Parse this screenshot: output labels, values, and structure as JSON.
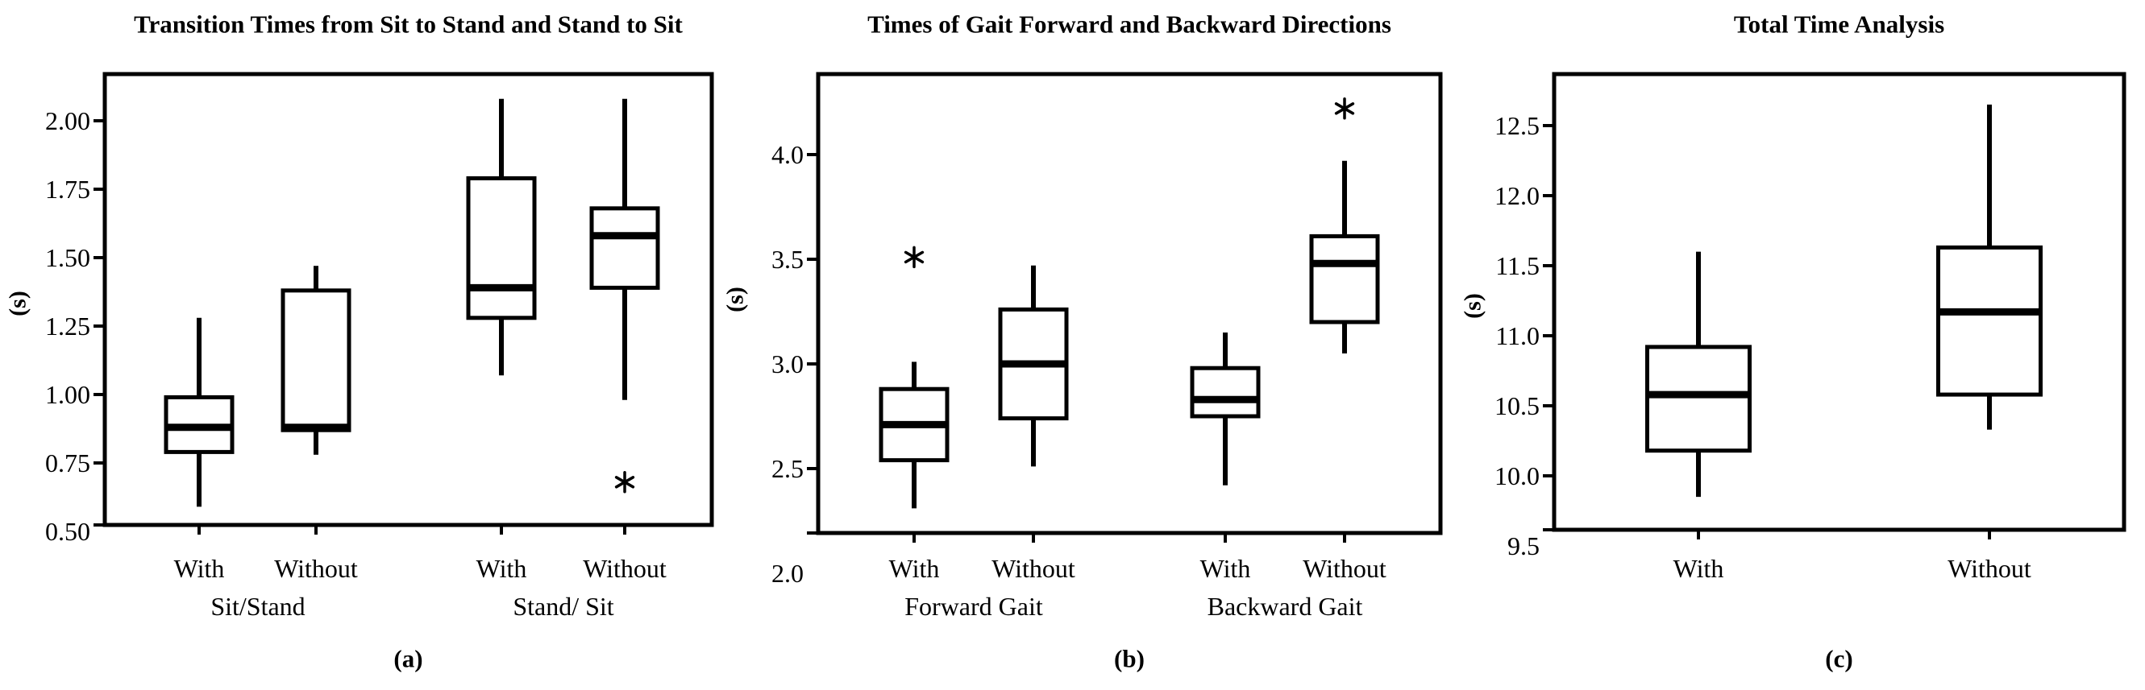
{
  "figure": {
    "type": "three-panel-boxplot-figure",
    "background": "#ffffff",
    "ink": "#000000"
  },
  "chart_data": [
    {
      "type": "box",
      "panel": "a",
      "title": "Transition Times from Sit to Stand and Stand to Sit",
      "ylabel": "(s)",
      "caption": "(a)",
      "ytick_labels": [
        "2.00",
        "1.75",
        "1.50",
        "1.25",
        "1.00",
        "0.75",
        "0.50"
      ],
      "ytick_values": [
        2.0,
        1.75,
        1.5,
        1.25,
        1.0,
        0.75,
        0.5
      ],
      "ylim_frame": [
        0.52,
        2.17
      ],
      "grid": false,
      "categories": [
        "With",
        "Without",
        "With",
        "Without"
      ],
      "groups": [
        "Sit/Stand",
        "Stand/ Sit"
      ],
      "boxes": [
        {
          "label": "With",
          "group": "Sit/Stand",
          "whisker_low": 0.59,
          "q1": 0.79,
          "median": 0.88,
          "q3": 0.99,
          "whisker_high": 1.28,
          "outliers": []
        },
        {
          "label": "Without",
          "group": "Sit/Stand",
          "whisker_low": 0.78,
          "q1": 0.87,
          "median": 0.88,
          "q3": 1.38,
          "whisker_high": 1.47,
          "outliers": []
        },
        {
          "label": "With",
          "group": "Stand/ Sit",
          "whisker_low": 1.07,
          "q1": 1.28,
          "median": 1.39,
          "q3": 1.79,
          "whisker_high": 2.08,
          "outliers": []
        },
        {
          "label": "Without",
          "group": "Stand/ Sit",
          "whisker_low": 0.98,
          "q1": 1.39,
          "median": 1.58,
          "q3": 1.68,
          "whisker_high": 2.08,
          "outliers": [
            0.68
          ]
        }
      ]
    },
    {
      "type": "box",
      "panel": "b",
      "title": "Times of Gait Forward and Backward Directions",
      "ylabel": "(s)",
      "caption": "(b)",
      "ytick_labels": [
        "4.0",
        "3.5",
        "3.0",
        "2.5",
        "2.0"
      ],
      "ytick_values": [
        4.0,
        3.5,
        3.0,
        2.5,
        2.0
      ],
      "ylim_frame": [
        2.19,
        4.38
      ],
      "grid": false,
      "categories": [
        "With",
        "Without",
        "With",
        "Without"
      ],
      "groups": [
        "Forward Gait",
        "Backward Gait"
      ],
      "boxes": [
        {
          "label": "With",
          "group": "Forward Gait",
          "whisker_low": 2.31,
          "q1": 2.54,
          "median": 2.71,
          "q3": 2.88,
          "whisker_high": 3.01,
          "outliers": [
            3.51
          ]
        },
        {
          "label": "Without",
          "group": "Forward Gait",
          "whisker_low": 2.51,
          "q1": 2.74,
          "median": 3.0,
          "q3": 3.26,
          "whisker_high": 3.47,
          "outliers": []
        },
        {
          "label": "With",
          "group": "Backward Gait",
          "whisker_low": 2.42,
          "q1": 2.75,
          "median": 2.83,
          "q3": 2.98,
          "whisker_high": 3.15,
          "outliers": []
        },
        {
          "label": "Without",
          "group": "Backward Gait",
          "whisker_low": 3.05,
          "q1": 3.2,
          "median": 3.48,
          "q3": 3.61,
          "whisker_high": 3.97,
          "outliers": [
            4.22
          ]
        }
      ]
    },
    {
      "type": "box",
      "panel": "c",
      "title": "Total Time Analysis",
      "ylabel": "(s)",
      "caption": "(c)",
      "ytick_labels": [
        "12.5",
        "12.0",
        "11.5",
        "11.0",
        "10.5",
        "10.0",
        "9.5"
      ],
      "ytick_values": [
        12.5,
        12.0,
        11.5,
        11.0,
        10.5,
        10.0,
        9.5
      ],
      "ylim_frame": [
        9.61,
        12.87
      ],
      "grid": false,
      "categories": [
        "With",
        "Without"
      ],
      "groups": [],
      "boxes": [
        {
          "label": "With",
          "group": "",
          "whisker_low": 9.85,
          "q1": 10.18,
          "median": 10.58,
          "q3": 10.92,
          "whisker_high": 11.6,
          "outliers": []
        },
        {
          "label": "Without",
          "group": "",
          "whisker_low": 10.33,
          "q1": 10.58,
          "median": 11.17,
          "q3": 11.63,
          "whisker_high": 12.65,
          "outliers": []
        }
      ]
    }
  ]
}
